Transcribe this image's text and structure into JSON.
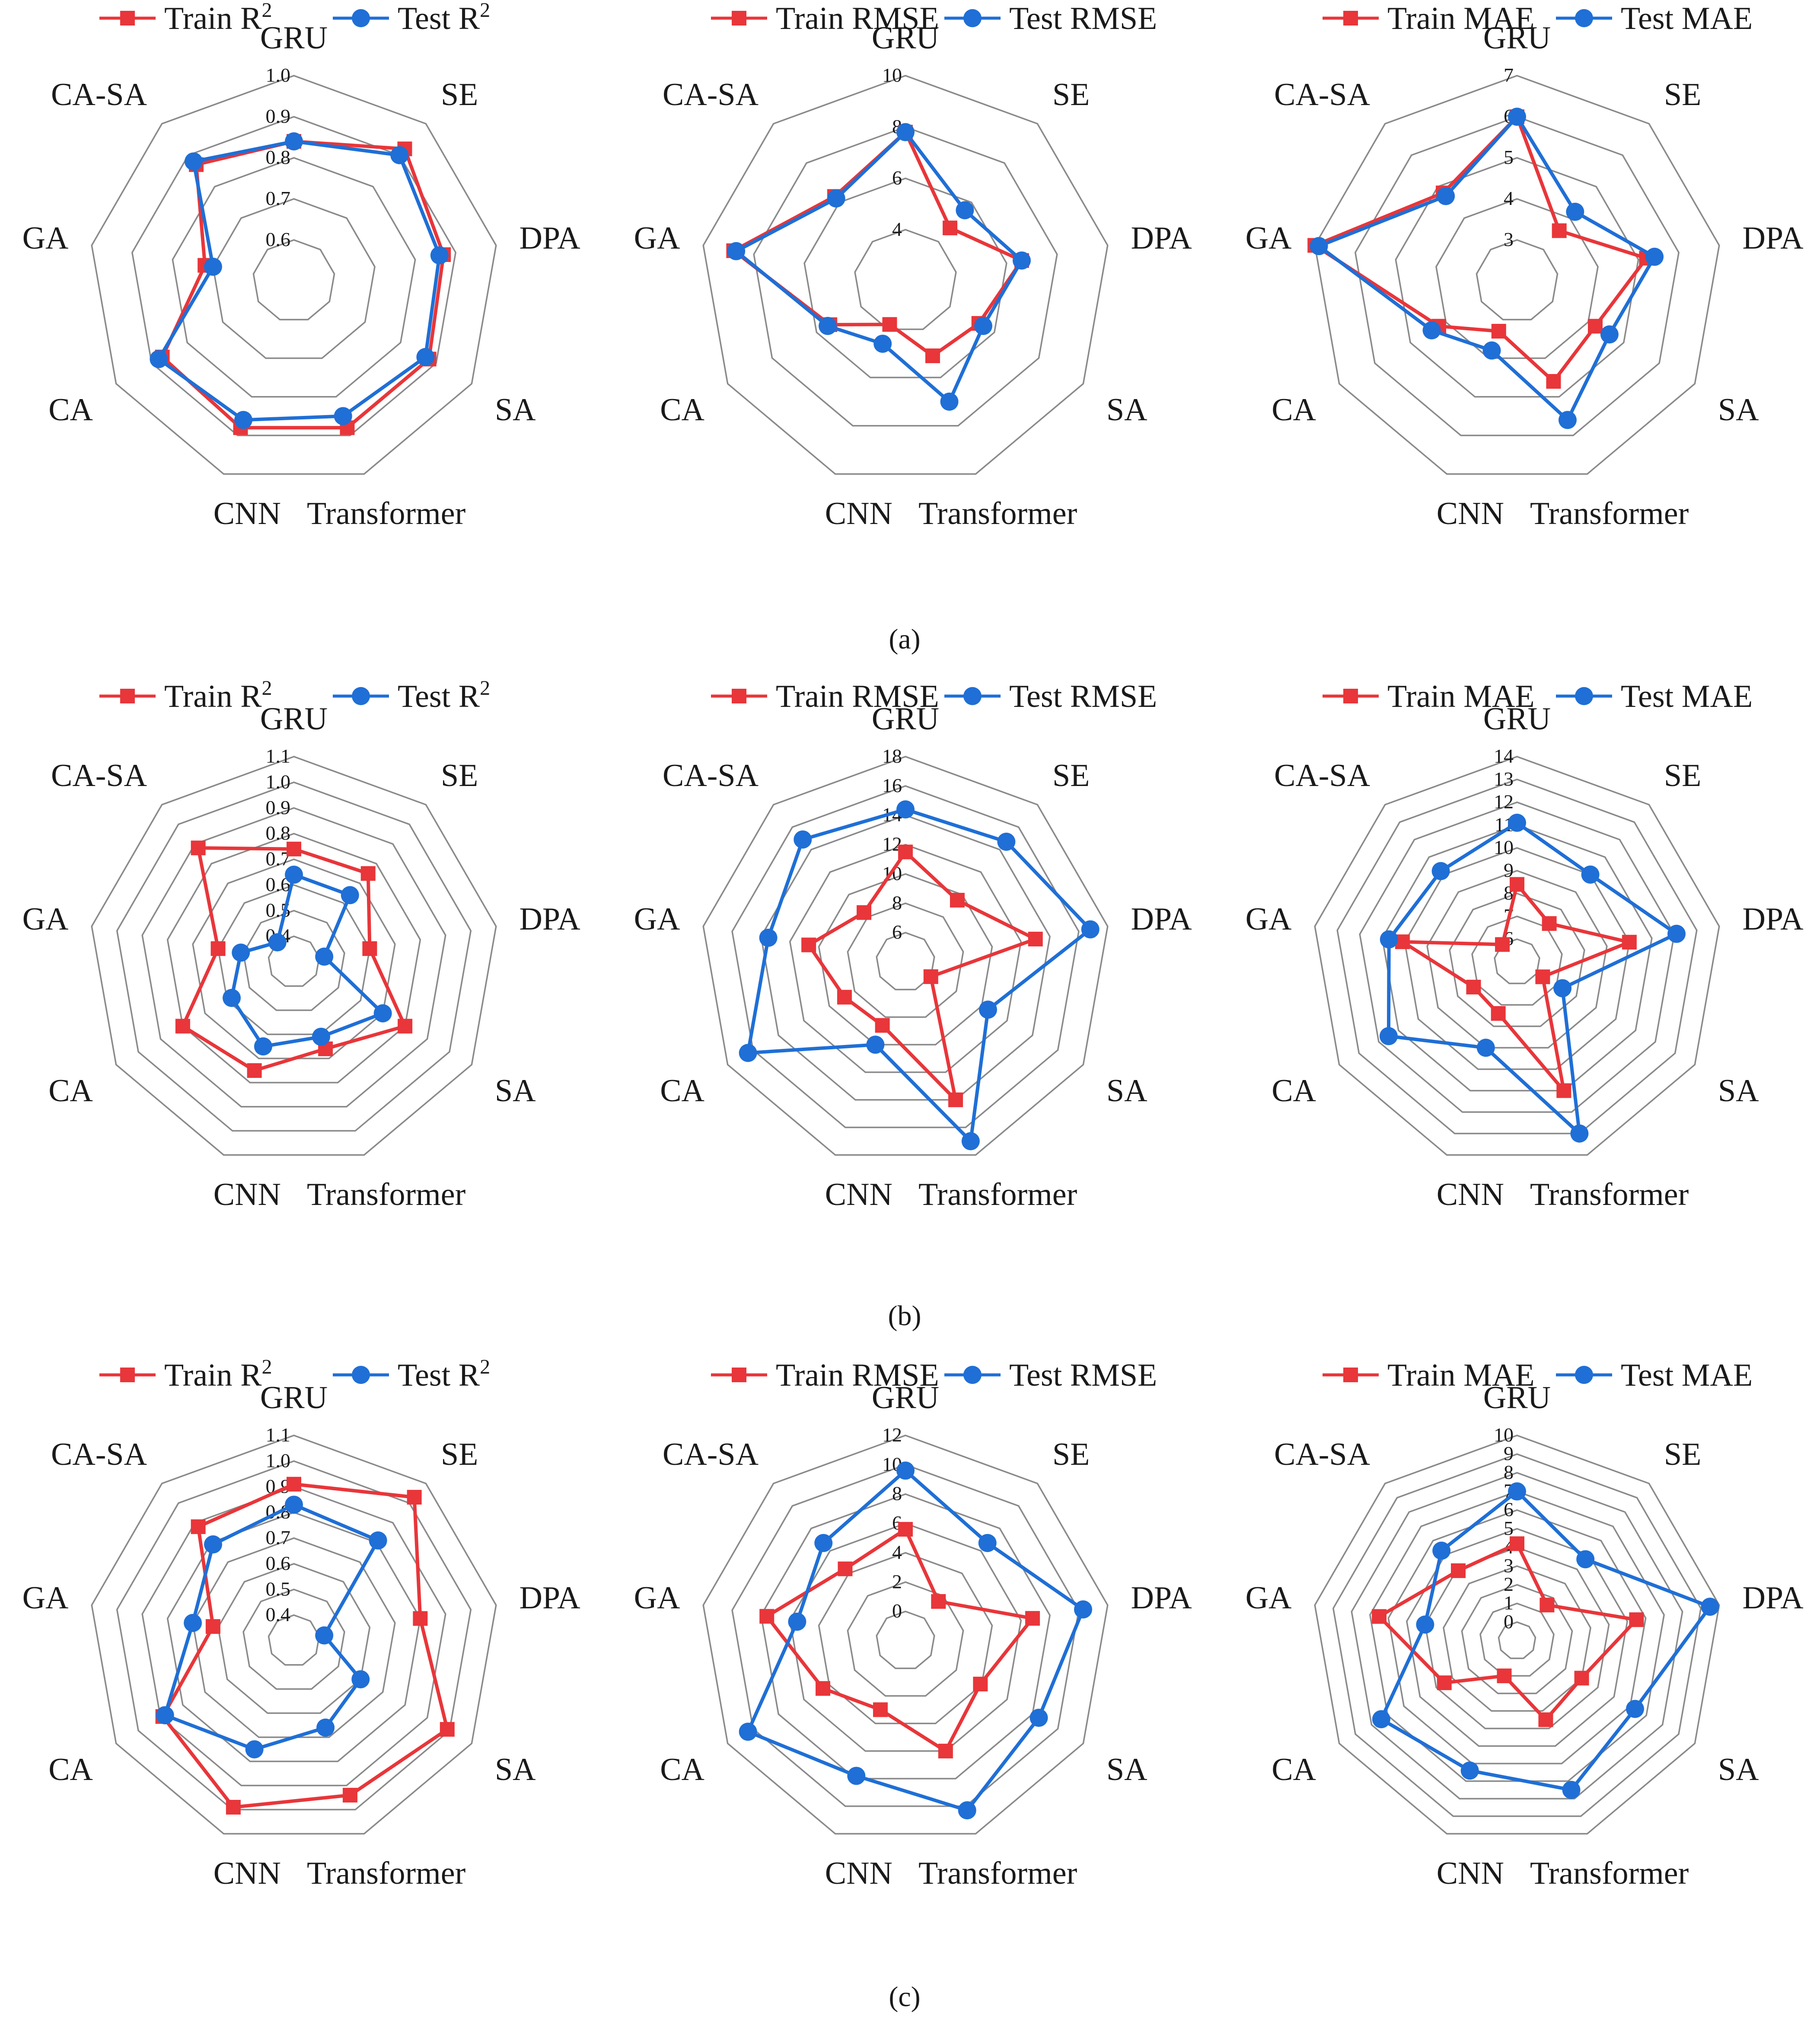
{
  "figure": {
    "categories": [
      "GRU",
      "SE",
      "DPA",
      "SA",
      "Transformer",
      "CNN",
      "CA",
      "GA",
      "CA-SA"
    ],
    "legend_train": "Train",
    "legend_test": "Test",
    "colors": {
      "train": "#e8363a",
      "test": "#1f6fd6",
      "grid": "#8a8a8a"
    },
    "sublabels": [
      "(a)",
      "(b)",
      "(c)"
    ]
  },
  "chart_data": [
    {
      "type": "radar",
      "panel": "(a)",
      "metric": "R2",
      "legend_suffix": "R",
      "ticks": [
        "0.6",
        "0.7",
        "0.8",
        "0.9",
        "1.0"
      ],
      "range": [
        0.5,
        1.0
      ],
      "series": [
        {
          "name": "Train R2",
          "values": [
            0.84,
            0.92,
            0.87,
            0.88,
            0.88,
            0.88,
            0.87,
            0.72,
            0.87
          ]
        },
        {
          "name": "Test R2",
          "values": [
            0.84,
            0.9,
            0.86,
            0.87,
            0.85,
            0.86,
            0.88,
            0.7,
            0.88
          ]
        }
      ]
    },
    {
      "type": "radar",
      "panel": "(a)",
      "metric": "RMSE",
      "legend_suffix": "RMSE",
      "ticks": [
        "4",
        "6",
        "8",
        "10"
      ],
      "range": [
        2,
        10
      ],
      "series": [
        {
          "name": "Train RMSE",
          "values": [
            7.8,
            4.7,
            6.6,
            5.3,
            5.1,
            3.8,
            5.4,
            8.8,
            6.3
          ]
        },
        {
          "name": "Test RMSE",
          "values": [
            7.8,
            5.6,
            6.6,
            5.5,
            7.0,
            4.6,
            5.5,
            8.7,
            6.2
          ]
        }
      ]
    },
    {
      "type": "radar",
      "panel": "(a)",
      "metric": "MAE",
      "legend_suffix": "MAE",
      "ticks": [
        "3",
        "4",
        "5",
        "6",
        "7"
      ],
      "range": [
        2,
        7
      ],
      "series": [
        {
          "name": "Train MAE",
          "values": [
            6.0,
            3.6,
            5.2,
            4.2,
            4.6,
            3.3,
            4.2,
            7.0,
            4.8
          ]
        },
        {
          "name": "Test MAE",
          "values": [
            6.0,
            4.2,
            5.4,
            4.6,
            5.6,
            3.8,
            4.4,
            6.9,
            4.7
          ]
        }
      ]
    },
    {
      "type": "radar",
      "panel": "(b)",
      "metric": "R2",
      "legend_suffix": "R",
      "ticks": [
        "0.4",
        "0.5",
        "0.6",
        "0.7",
        "0.8",
        "0.9",
        "1.0",
        "1.1"
      ],
      "range": [
        0.3,
        1.1
      ],
      "series": [
        {
          "name": "Train R2",
          "values": [
            0.74,
            0.75,
            0.6,
            0.8,
            0.66,
            0.75,
            0.8,
            0.6,
            0.88
          ]
        },
        {
          "name": "Test R2",
          "values": [
            0.64,
            0.64,
            0.42,
            0.7,
            0.61,
            0.65,
            0.58,
            0.51,
            0.4
          ]
        }
      ]
    },
    {
      "type": "radar",
      "panel": "(b)",
      "metric": "RMSE",
      "legend_suffix": "RMSE",
      "ticks": [
        "6",
        "8",
        "10",
        "12",
        "14",
        "16",
        "18"
      ],
      "range": [
        4,
        18
      ],
      "series": [
        {
          "name": "Train RMSE",
          "values": [
            11.5,
            9.5,
            13.0,
            6.0,
            14.0,
            8.6,
            8.8,
            10.7,
            8.4
          ]
        },
        {
          "name": "Test RMSE",
          "values": [
            14.4,
            14.7,
            16.8,
            10.5,
            17.0,
            10.0,
            16.4,
            13.5,
            14.9
          ]
        }
      ]
    },
    {
      "type": "radar",
      "panel": "(b)",
      "metric": "MAE",
      "legend_suffix": "MAE",
      "ticks": [
        "6",
        "7",
        "8",
        "9",
        "10",
        "11",
        "12",
        "13",
        "14"
      ],
      "range": [
        5,
        14
      ],
      "series": [
        {
          "name": "Train MAE",
          "values": [
            8.4,
            7.2,
            10.0,
            6.3,
            11.0,
            7.4,
            7.2,
            10.1,
            6.0
          ]
        },
        {
          "name": "Test MAE",
          "values": [
            11.1,
            10.0,
            12.1,
            7.3,
            13.0,
            9.0,
            11.5,
            10.7,
            10.2
          ]
        }
      ]
    },
    {
      "type": "radar",
      "panel": "(c)",
      "metric": "R2",
      "legend_suffix": "R",
      "ticks": [
        "0.4",
        "0.5",
        "0.6",
        "0.7",
        "0.8",
        "0.9",
        "1.0",
        "1.1"
      ],
      "range": [
        0.3,
        1.1
      ],
      "series": [
        {
          "name": "Train R2",
          "values": [
            0.91,
            1.03,
            0.8,
            0.99,
            0.94,
            0.99,
            0.89,
            0.62,
            0.88
          ]
        },
        {
          "name": "Test R2",
          "values": [
            0.83,
            0.81,
            0.42,
            0.6,
            0.66,
            0.75,
            0.88,
            0.7,
            0.79
          ]
        }
      ]
    },
    {
      "type": "radar",
      "panel": "(c)",
      "metric": "RMSE",
      "legend_suffix": "RMSE",
      "ticks": [
        "0",
        "2",
        "4",
        "6",
        "8",
        "10",
        "12"
      ],
      "range": [
        -2,
        12
      ],
      "series": [
        {
          "name": "Train RMSE",
          "values": [
            5.6,
            1.5,
            6.8,
            3.9,
            6.0,
            3.0,
            4.5,
            7.6,
            4.4
          ]
        },
        {
          "name": "Test RMSE",
          "values": [
            9.6,
            6.7,
            10.3,
            8.5,
            10.3,
            7.8,
            10.4,
            5.5,
            6.7
          ]
        }
      ]
    },
    {
      "type": "radar",
      "panel": "(c)",
      "metric": "MAE",
      "legend_suffix": "MAE",
      "ticks": [
        "0",
        "1",
        "2",
        "3",
        "4",
        "5",
        "6",
        "7",
        "8",
        "9",
        "10"
      ],
      "range": [
        -1,
        10
      ],
      "series": [
        {
          "name": "Train MAE",
          "values": [
            4.2,
            1.5,
            5.5,
            3.0,
            3.5,
            1.0,
            3.5,
            6.5,
            3.9
          ]
        },
        {
          "name": "Test MAE",
          "values": [
            7.0,
            4.7,
            9.5,
            6.3,
            7.5,
            6.4,
            7.4,
            4.0,
            5.3
          ]
        }
      ]
    }
  ]
}
